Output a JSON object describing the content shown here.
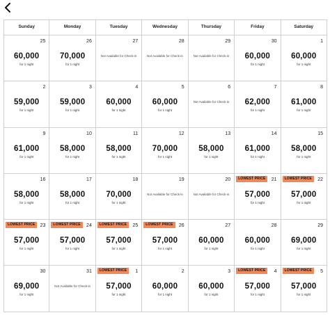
{
  "back_icon": "chevron-left-icon",
  "weekdays": [
    "Sunday",
    "Monday",
    "Tuesday",
    "Wednesday",
    "Thursday",
    "Friday",
    "Saturday"
  ],
  "badge_color": "#f0895a",
  "days": [
    {
      "day": "25",
      "price": "60,000",
      "sub": "for 1 night"
    },
    {
      "day": "26",
      "price": "70,000",
      "sub": "for 1 night"
    },
    {
      "day": "27",
      "na": "Not Available for Check-in"
    },
    {
      "day": "28",
      "na": "Not Available for Check-in"
    },
    {
      "day": "29",
      "na": "Not Available for Check-in"
    },
    {
      "day": "30",
      "price": "60,000",
      "sub": "for 1 night"
    },
    {
      "day": "1",
      "price": "60,000",
      "sub": "for 1 night"
    },
    {
      "day": "2",
      "price": "59,000",
      "sub": "for 1 night"
    },
    {
      "day": "3",
      "price": "59,000",
      "sub": "for 1 night"
    },
    {
      "day": "4",
      "price": "60,000",
      "sub": "for 1 night"
    },
    {
      "day": "5",
      "price": "60,000",
      "sub": "for 1 night"
    },
    {
      "day": "6",
      "na": "Not Available for Check-in"
    },
    {
      "day": "7",
      "price": "62,000",
      "sub": "for 1 night"
    },
    {
      "day": "8",
      "price": "61,000",
      "sub": "for 1 night"
    },
    {
      "day": "9",
      "price": "61,000",
      "sub": "for 1 night"
    },
    {
      "day": "10",
      "price": "58,000",
      "sub": "for 1 night"
    },
    {
      "day": "11",
      "price": "58,000",
      "sub": "for 1 night"
    },
    {
      "day": "12",
      "price": "70,000",
      "sub": "for 1 night"
    },
    {
      "day": "13",
      "price": "58,000",
      "sub": "for 1 night"
    },
    {
      "day": "14",
      "price": "61,000",
      "sub": "for 1 night"
    },
    {
      "day": "15",
      "price": "58,000",
      "sub": "for 1 night"
    },
    {
      "day": "16",
      "price": "58,000",
      "sub": "for 1 night"
    },
    {
      "day": "17",
      "price": "58,000",
      "sub": "for 1 night"
    },
    {
      "day": "18",
      "price": "70,000",
      "sub": "for 1 night"
    },
    {
      "day": "19",
      "na": "Not Available for Check-in"
    },
    {
      "day": "20",
      "na": "Not Available for Check-in"
    },
    {
      "day": "21",
      "price": "57,000",
      "sub": "for 1 night",
      "badge": "LOWEST PRICE"
    },
    {
      "day": "22",
      "price": "57,000",
      "sub": "for 1 night",
      "badge": "LOWEST PRICE"
    },
    {
      "day": "23",
      "price": "57,000",
      "sub": "for 1 night",
      "badge": "LOWEST PRICE"
    },
    {
      "day": "24",
      "price": "57,000",
      "sub": "for 1 night",
      "badge": "LOWEST PRICE"
    },
    {
      "day": "25",
      "price": "57,000",
      "sub": "for 1 night",
      "badge": "LOWEST PRICE"
    },
    {
      "day": "26",
      "price": "57,000",
      "sub": "for 1 night",
      "badge": "LOWEST PRICE"
    },
    {
      "day": "27",
      "price": "60,000",
      "sub": "for 1 night"
    },
    {
      "day": "28",
      "price": "60,000",
      "sub": "for 1 night"
    },
    {
      "day": "29",
      "price": "69,000",
      "sub": "for 1 night"
    },
    {
      "day": "30",
      "price": "69,000",
      "sub": "for 1 night"
    },
    {
      "day": "31",
      "na": "Not Available for Check-in"
    },
    {
      "day": "1",
      "price": "57,000",
      "sub": "for 1 night",
      "badge": "LOWEST PRICE"
    },
    {
      "day": "2",
      "price": "60,000",
      "sub": "for 1 night"
    },
    {
      "day": "3",
      "price": "60,000",
      "sub": "for 1 night"
    },
    {
      "day": "4",
      "price": "57,000",
      "sub": "for 1 night",
      "badge": "LOWEST PRICE"
    },
    {
      "day": "5",
      "price": "57,000",
      "sub": "for 1 night",
      "badge": "LOWEST PRICE"
    }
  ]
}
